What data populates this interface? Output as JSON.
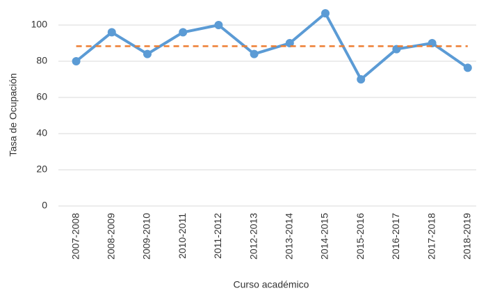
{
  "chart_data": {
    "type": "line",
    "y_label": "Tasa de Ocupación",
    "x_label": "Curso académico",
    "categories": [
      "2007-2008",
      "2008-2009",
      "2009-2010",
      "2010-2011",
      "2011-2012",
      "2012-2013",
      "2013-2014",
      "2014-2015",
      "2015-2016",
      "2016-2017",
      "2017-2018",
      "2018-2019"
    ],
    "series": [
      {
        "color": "#5b9bd5",
        "values": [
          80,
          96,
          84,
          96,
          100,
          84,
          90,
          106.5,
          70,
          86.7,
          90,
          76.4
        ],
        "markers": true,
        "dashed": false
      },
      {
        "color": "#ed7d31",
        "values": [
          88.3,
          88.3,
          88.3,
          88.3,
          88.3,
          88.3,
          88.3,
          88.3,
          88.3,
          88.3,
          88.3,
          88.3
        ],
        "markers": false,
        "dashed": true
      }
    ],
    "ylim": [
      0,
      110
    ],
    "yticks": [
      0,
      20,
      40,
      60,
      80,
      100
    ],
    "grid": true
  }
}
